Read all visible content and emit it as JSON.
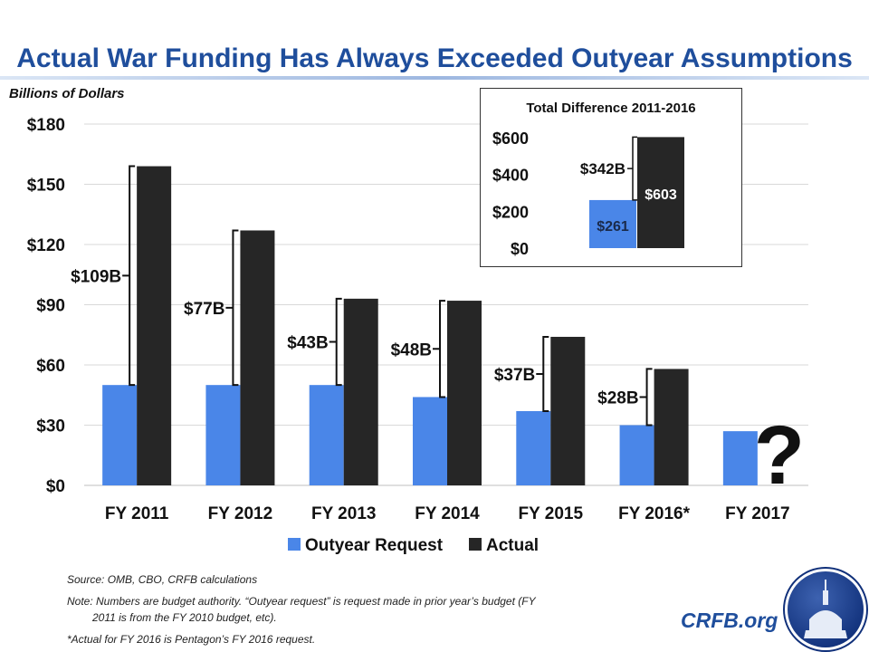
{
  "chart_data": {
    "type": "bar",
    "title": "Actual War Funding Has Always Exceeded Outyear Assumptions",
    "ylabel": "Billions of Dollars",
    "ylim": [
      0,
      180
    ],
    "yticks": [
      0,
      30,
      60,
      90,
      120,
      150,
      180
    ],
    "ytick_labels": [
      "$0",
      "$30",
      "$60",
      "$90",
      "$120",
      "$150",
      "$180"
    ],
    "categories": [
      "FY 2011",
      "FY 2012",
      "FY 2013",
      "FY 2014",
      "FY 2015",
      "FY 2016*",
      "FY 2017"
    ],
    "series": [
      {
        "name": "Outyear Request",
        "color": "#4a86e8",
        "values": [
          50,
          50,
          50,
          44,
          37,
          30,
          27
        ]
      },
      {
        "name": "Actual",
        "color": "#262626",
        "values": [
          159,
          127,
          93,
          92,
          74,
          58,
          null
        ]
      }
    ],
    "difference_labels": [
      "$109B",
      "$77B",
      "$43B",
      "$48B",
      "$37B",
      "$28B"
    ],
    "unknown_marker": "?",
    "legend": "bottom",
    "grid": true,
    "inset": {
      "title": "Total Difference 2011-2016",
      "ylim": [
        0,
        600
      ],
      "ytick_labels": [
        "$0",
        "$200",
        "$400",
        "$600"
      ],
      "yticks": [
        0,
        200,
        400,
        600
      ],
      "outyear_total": 261,
      "actual_total": 603,
      "outyear_label": "$261",
      "actual_label": "$603",
      "difference_label": "$342B"
    }
  },
  "footer": {
    "source": "Source: OMB, CBO, CRFB calculations",
    "note_line1": "Note: Numbers are budget authority. “Outyear request” is request made in prior year’s budget (FY",
    "note_line2": "2011 is from the FY 2010 budget, etc).",
    "asterisk": "*Actual for FY 2016 is Pentagon’s FY 2016 request.",
    "brand": "CRFB.org"
  }
}
